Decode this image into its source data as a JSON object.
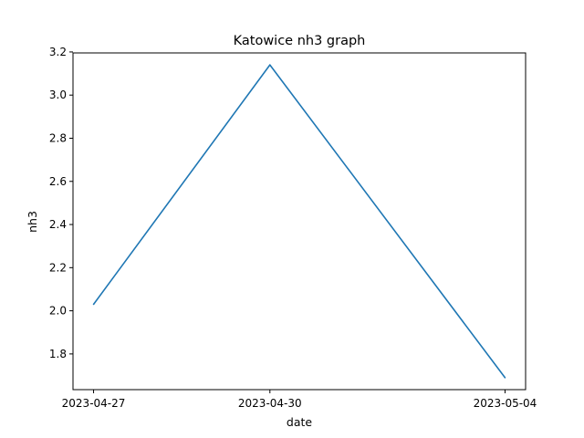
{
  "chart_data": {
    "type": "line",
    "title": "Katowice nh3 graph",
    "xlabel": "date",
    "ylabel": "nh3",
    "x": [
      "2023-04-27",
      "2023-04-30",
      "2023-05-04"
    ],
    "series": [
      {
        "values": [
          2.03,
          3.14,
          1.69
        ],
        "color": "#1f77b4"
      }
    ],
    "x_ticks": [
      "2023-04-27",
      "2023-04-30",
      "2023-05-04"
    ],
    "y_ticks": [
      "1.8",
      "2.0",
      "2.2",
      "2.4",
      "2.6",
      "2.8",
      "3.0",
      "3.2"
    ],
    "ylim": [
      1.6345,
      3.1955
    ],
    "grid": false,
    "legend": "none"
  }
}
